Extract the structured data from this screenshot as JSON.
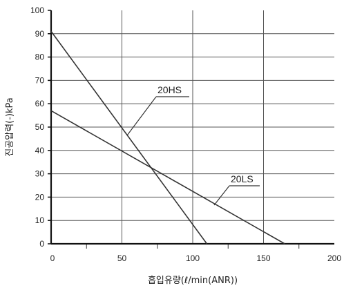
{
  "chart_data": {
    "type": "line",
    "title": "",
    "xlabel": "흡입유량(ℓ/min(ANR))",
    "ylabel": "진공압력(-)kPa",
    "xlim": [
      0,
      200
    ],
    "ylim": [
      0,
      100
    ],
    "x_ticks": [
      "0",
      "50",
      "100",
      "150",
      "200"
    ],
    "y_ticks": [
      "0",
      "10",
      "20",
      "30",
      "40",
      "50",
      "60",
      "70",
      "80",
      "90",
      "100"
    ],
    "grid": true,
    "series": [
      {
        "name": "20HS",
        "x": [
          0,
          110
        ],
        "y": [
          91,
          0
        ],
        "color": "#333333"
      },
      {
        "name": "20LS",
        "x": [
          0,
          165
        ],
        "y": [
          57,
          0
        ],
        "color": "#333333"
      }
    ]
  }
}
